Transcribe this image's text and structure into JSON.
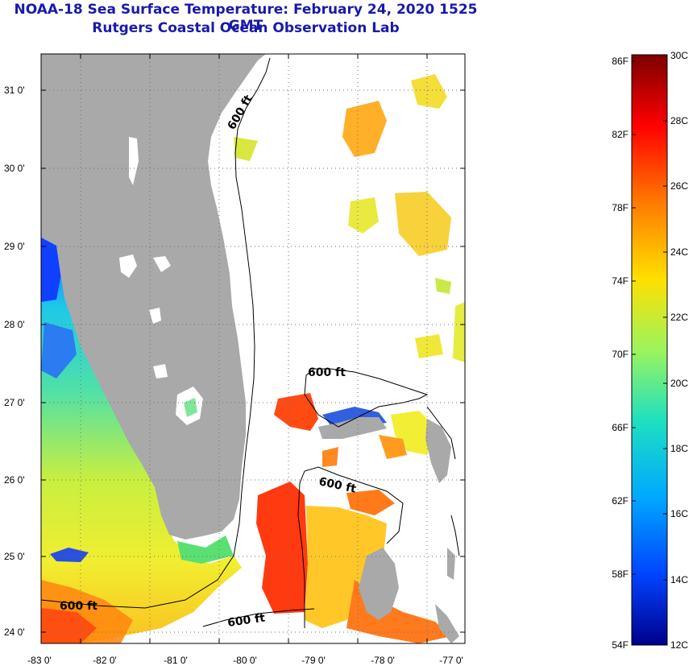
{
  "header": {
    "title": "NOAA-18 Sea Surface Temperature:  February 24, 2020 1525 GMT",
    "subtitle": "Rutgers Coastal Ocean Observation Lab"
  },
  "map": {
    "lat_ticks": [
      "31 0'",
      "30 0'",
      "29 0'",
      "28 0'",
      "27 0'",
      "26 0'",
      "25 0'",
      "24 0'"
    ],
    "lon_ticks": [
      "-83 0'",
      "-82 0'",
      "-81 0'",
      "-80 0'",
      "-79 0'",
      "-78 0'",
      "-77 0'"
    ],
    "isobath_labels": [
      "600 ft",
      "600 ft",
      "600 ft",
      "600 ft",
      "600 ft"
    ],
    "colors": {
      "land": "#a9a9a9",
      "cloud": "#ffffff",
      "grid": "#6f6f6f"
    }
  },
  "colorbar": {
    "fahrenheit_labels": [
      "86F",
      "82F",
      "78F",
      "74F",
      "70F",
      "66F",
      "62F",
      "58F",
      "54F"
    ],
    "celsius_labels": [
      "30C",
      "28C",
      "26C",
      "24C",
      "22C",
      "20C",
      "18C",
      "16C",
      "14C",
      "12C"
    ]
  }
}
